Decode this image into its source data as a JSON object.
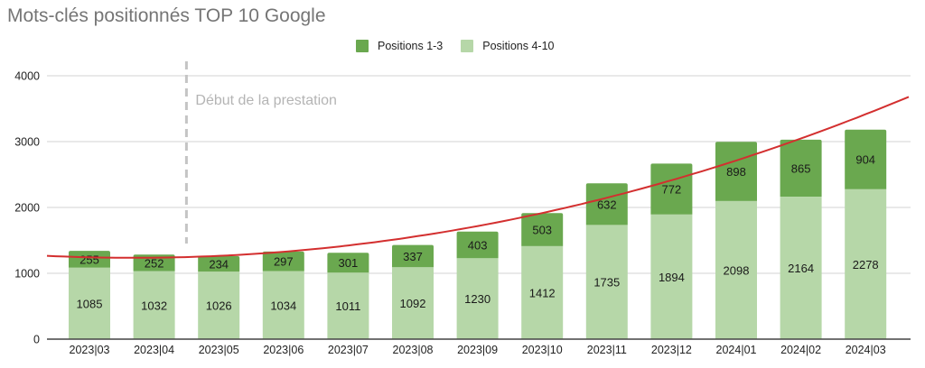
{
  "chart_data": {
    "type": "bar",
    "stacked": true,
    "title": "Mots-clés positionnés TOP 10 Google",
    "xlabel": "",
    "ylabel": "",
    "ylim": [
      0,
      4000
    ],
    "yticks": [
      0,
      1000,
      2000,
      3000,
      4000
    ],
    "grid": true,
    "legend_position": "top",
    "categories": [
      "2023|03",
      "2023|04",
      "2023|05",
      "2023|06",
      "2023|07",
      "2023|08",
      "2023|09",
      "2023|10",
      "2023|11",
      "2023|12",
      "2024|01",
      "2024|02",
      "2024|03"
    ],
    "series": [
      {
        "name": "Positions 4-10",
        "color": "#b6d7a8",
        "values": [
          1085,
          1032,
          1026,
          1034,
          1011,
          1092,
          1230,
          1412,
          1735,
          1894,
          2098,
          2164,
          2278
        ]
      },
      {
        "name": "Positions 1-3",
        "color": "#6aa84f",
        "values": [
          255,
          252,
          234,
          297,
          301,
          337,
          403,
          503,
          632,
          772,
          898,
          865,
          904
        ]
      }
    ],
    "trendline": {
      "type": "polynomial",
      "color": "#d32f2f",
      "start_value": 1250,
      "end_value": 3680
    },
    "annotations": [
      {
        "text": "Début de la prestation",
        "x_between": [
          "2023|04",
          "2023|05"
        ],
        "style": "dashed vertical line"
      }
    ]
  },
  "legend": {
    "items": [
      {
        "label": "Positions 1-3",
        "color": "#6aa84f"
      },
      {
        "label": "Positions 4-10",
        "color": "#b6d7a8"
      }
    ]
  }
}
